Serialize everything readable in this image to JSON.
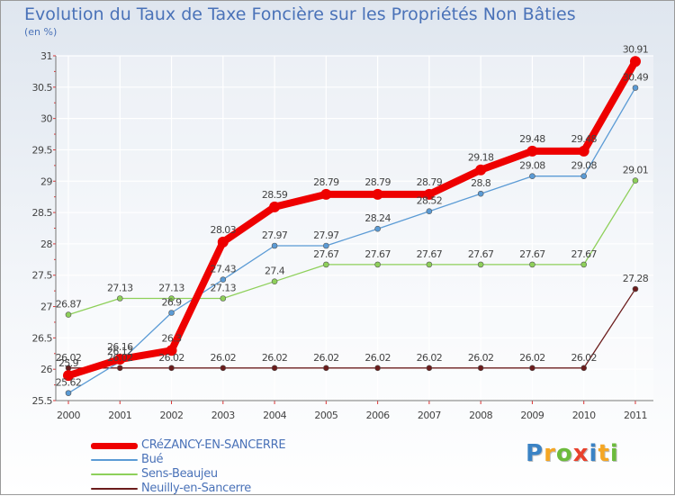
{
  "header": {
    "title": "Evolution du Taux de Taxe Foncière sur les Propriétés Non Bâties",
    "unit": "(en %)"
  },
  "chart_data": {
    "type": "line",
    "title": "Evolution du Taux de Taxe Foncière sur les Propriétés Non Bâties",
    "ylabel": "(en %)",
    "xlabel": "",
    "ylim": [
      25.5,
      31
    ],
    "y_ticks": [
      "25.5",
      "26",
      "26.5",
      "27",
      "27.5",
      "28",
      "28.5",
      "29",
      "29.5",
      "30",
      "30.5",
      "31"
    ],
    "categories": [
      "2000",
      "2001",
      "2002",
      "2003",
      "2004",
      "2005",
      "2006",
      "2007",
      "2008",
      "2009",
      "2010",
      "2011"
    ],
    "series": [
      {
        "name": "Neuilly-en-Sancerre",
        "color": "#6b1c1c",
        "values": [
          26.02,
          26.02,
          26.02,
          26.02,
          26.02,
          26.02,
          26.02,
          26.02,
          26.02,
          26.02,
          26.02,
          27.28
        ],
        "labels": [
          "26.02",
          "26.02",
          "26.02",
          "26.02",
          "26.02",
          "26.02",
          "26.02",
          "26.02",
          "26.02",
          "26.02",
          "26.02",
          "27.28"
        ]
      },
      {
        "name": "Sens-Beaujeu",
        "color": "#8ed05a",
        "values": [
          26.87,
          27.13,
          27.13,
          27.13,
          27.4,
          27.67,
          27.67,
          27.67,
          27.67,
          27.67,
          27.67,
          29.01
        ],
        "labels": [
          "26.87",
          "27.13",
          "27.13",
          "27.13",
          "27.4",
          "27.67",
          "27.67",
          "27.67",
          "27.67",
          "27.67",
          "27.67",
          "29.01"
        ]
      },
      {
        "name": "Bué",
        "color": "#5b9bd5",
        "values": [
          25.62,
          26.12,
          26.9,
          27.43,
          27.97,
          27.97,
          28.24,
          28.52,
          28.8,
          29.08,
          29.08,
          30.49
        ],
        "labels": [
          "25.62",
          "26.12",
          "26.9",
          "27.43",
          "27.97",
          "27.97",
          "28.24",
          "28.52",
          "28.8",
          "29.08",
          "29.08",
          "30.49"
        ]
      },
      {
        "name": "CRéZANCY-EN-SANCERRE",
        "color": "#ee0000",
        "values": [
          25.9,
          26.16,
          26.3,
          28.03,
          28.59,
          28.79,
          28.79,
          28.79,
          29.18,
          29.48,
          29.48,
          30.91
        ],
        "labels": [
          "25.9",
          "26.16",
          "26.3",
          "28.03",
          "28.59",
          "28.79",
          "28.79",
          "28.79",
          "29.18",
          "29.48",
          "29.48",
          "30.91"
        ]
      }
    ],
    "legend": [
      "CRéZANCY-EN-SANCERRE",
      "Bué",
      "Sens-Beaujeu",
      "Neuilly-en-Sancerre"
    ],
    "grid": true
  },
  "logo": {
    "letters": [
      "P",
      "r",
      "o",
      "x",
      "i",
      "t",
      "i"
    ],
    "colors": [
      "#3b83c5",
      "#f5a623",
      "#6cbb3c",
      "#e8412c",
      "#3b83c5",
      "#f5a623",
      "#6cbb3c"
    ]
  }
}
